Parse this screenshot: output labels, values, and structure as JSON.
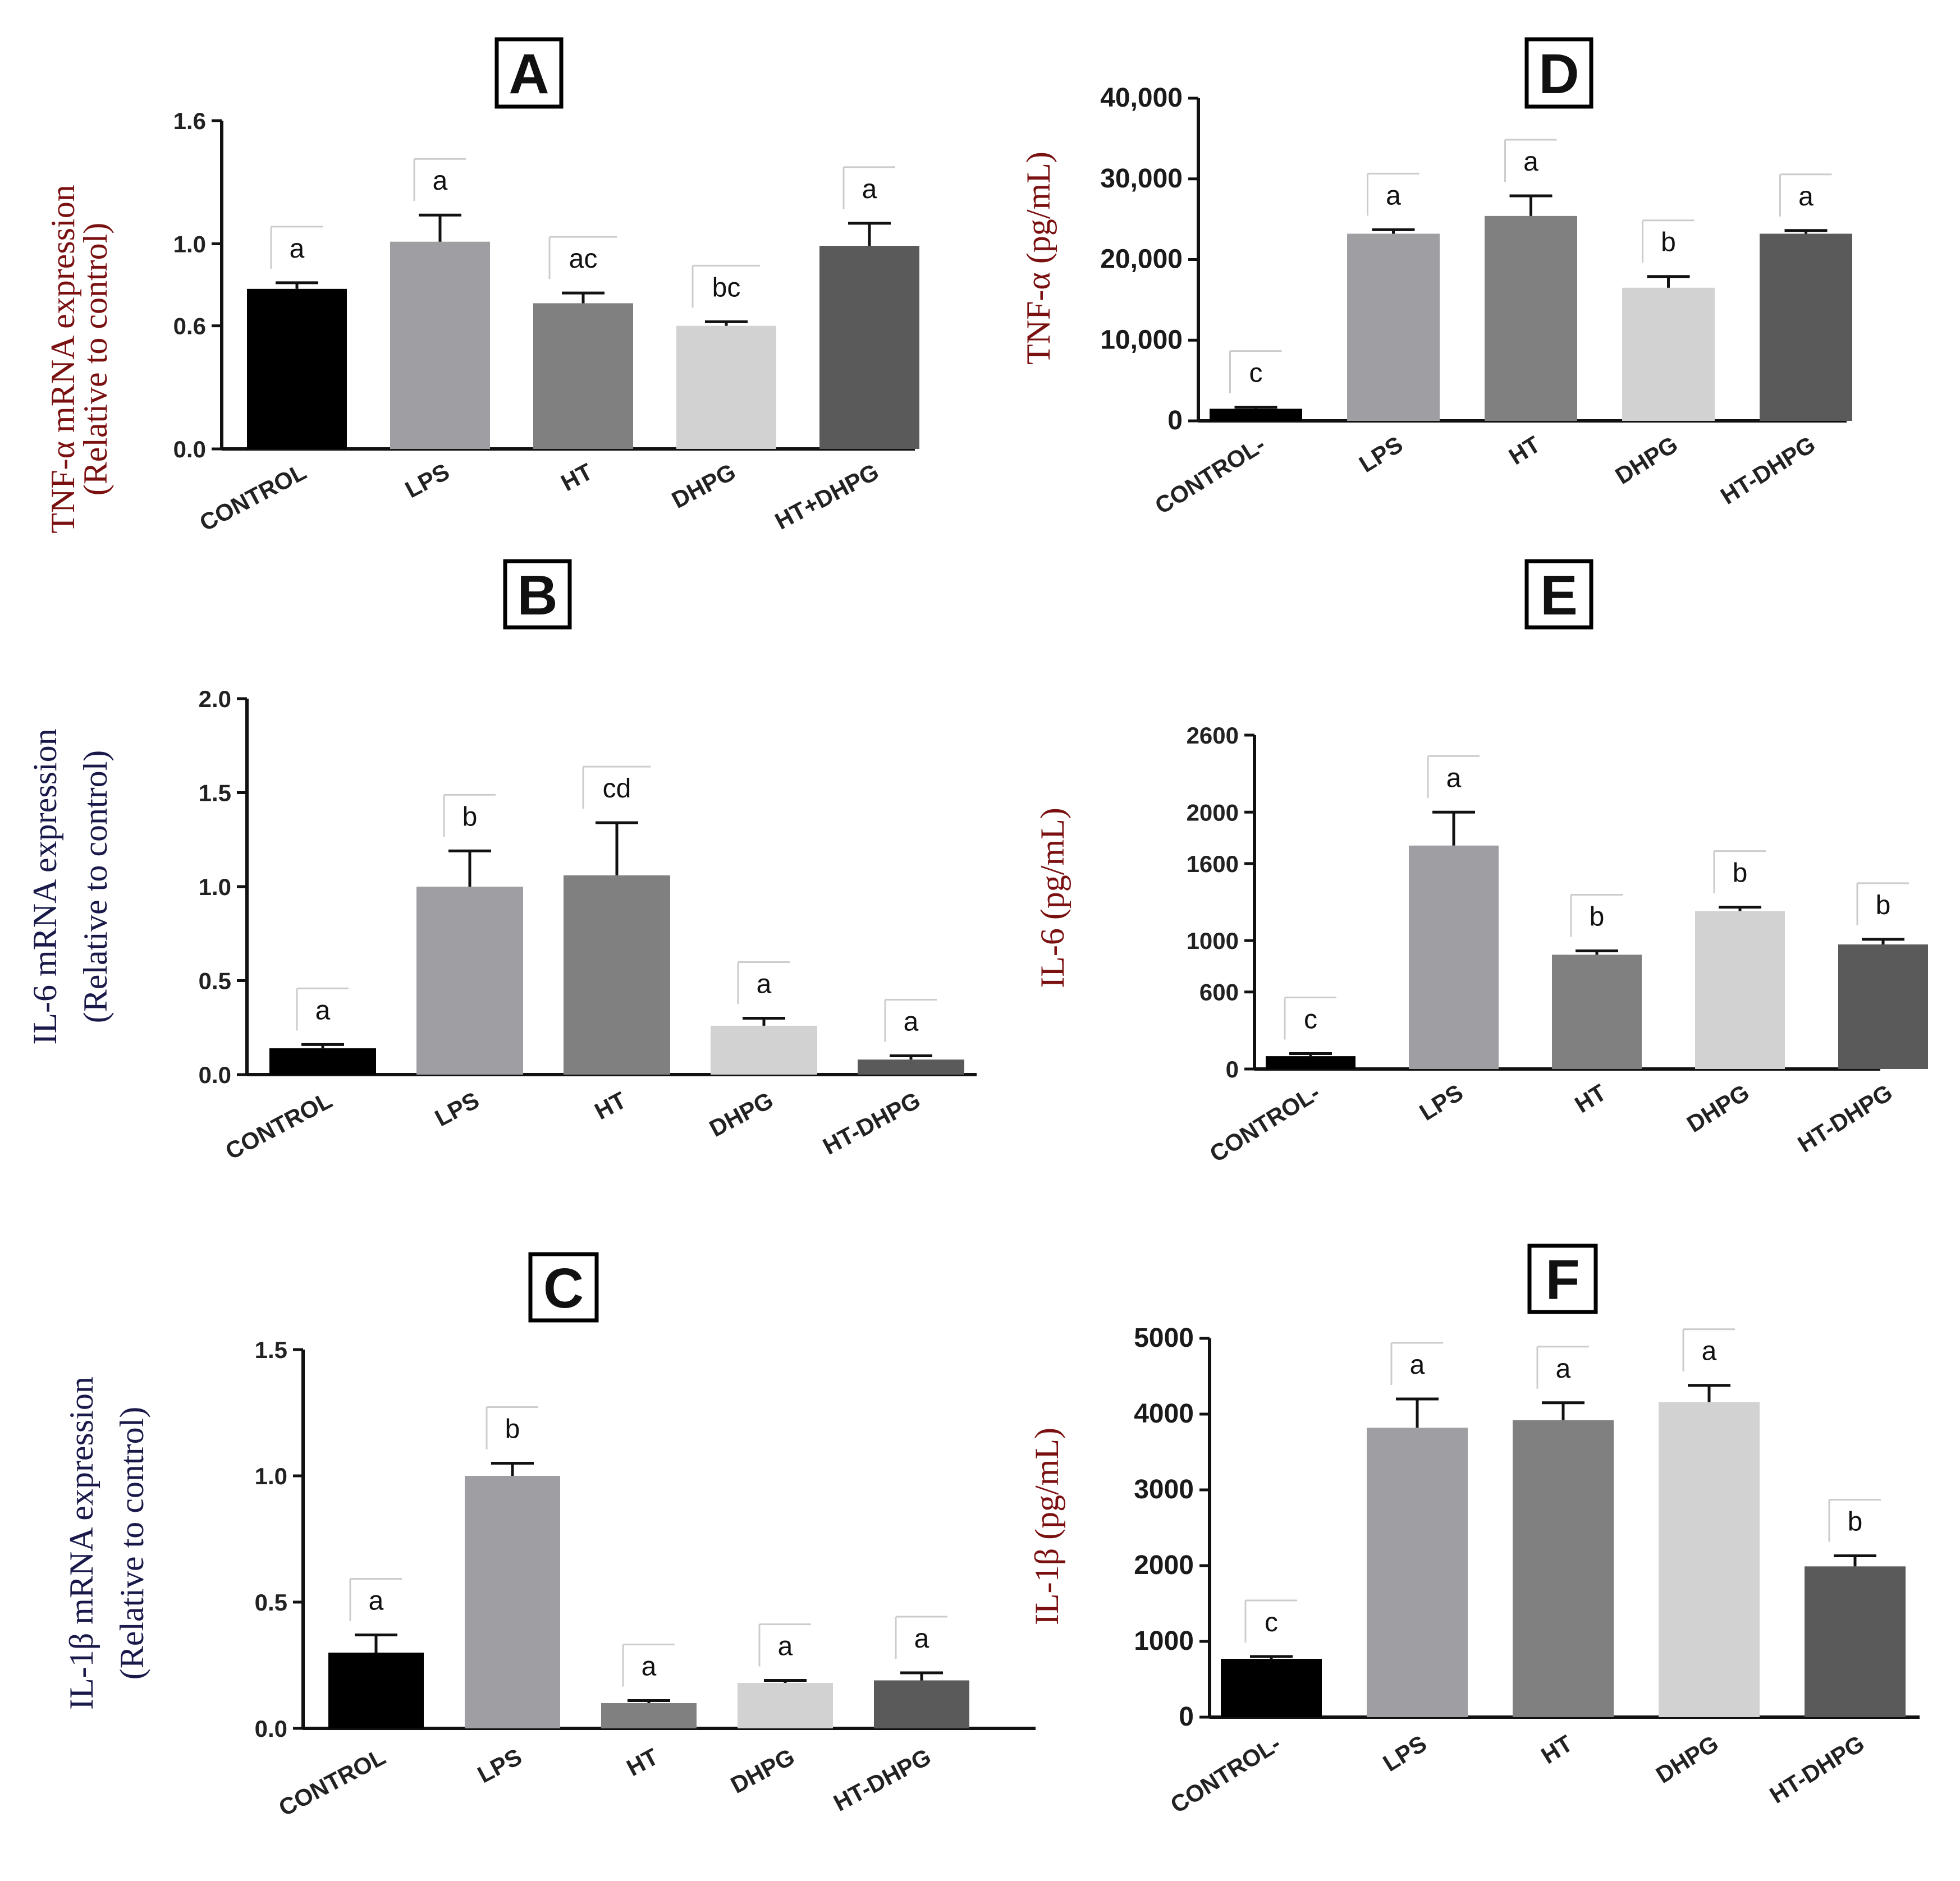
{
  "chart_data": [
    {
      "id": "A",
      "panel_label": "A",
      "type": "bar",
      "ylabel_lines": [
        "TNF-α mRNA expression",
        "(Relative to control)"
      ],
      "ylabel_color": "#7a1010",
      "categories": [
        "CONTROL",
        "LPS",
        "HT",
        "DHPG",
        "HT+DHPG"
      ],
      "values": [
        0.78,
        1.01,
        0.71,
        0.6,
        0.99
      ],
      "errors": [
        0.03,
        0.13,
        0.05,
        0.02,
        0.11
      ],
      "significance": [
        "a",
        "a",
        "ac",
        "bc",
        "a"
      ],
      "bar_colors": [
        "#000000",
        "#9e9ea3",
        "#808080",
        "#d2d2d2",
        "#5a5a5a"
      ],
      "ylim": [
        0,
        1.6
      ],
      "yticks": [
        0.0,
        0.6,
        1.0,
        1.6
      ],
      "ytick_labels": [
        "0.0",
        "0.6",
        "1.0",
        "1.6"
      ]
    },
    {
      "id": "B",
      "panel_label": "B",
      "type": "bar",
      "ylabel_lines": [
        "IL-6 mRNA expression",
        "(Relative to control)"
      ],
      "ylabel_color": "#1a1a4a",
      "categories": [
        "CONTROL",
        "LPS",
        "HT",
        "DHPG",
        "HT-DHPG"
      ],
      "values": [
        0.14,
        1.0,
        1.06,
        0.26,
        0.08
      ],
      "errors": [
        0.02,
        0.19,
        0.28,
        0.04,
        0.02
      ],
      "significance": [
        "a",
        "b",
        "cd",
        "a",
        "a"
      ],
      "bar_colors": [
        "#000000",
        "#9e9ea3",
        "#808080",
        "#d2d2d2",
        "#5a5a5a"
      ],
      "ylim": [
        0,
        2.0
      ],
      "yticks": [
        0.0,
        0.5,
        1.0,
        1.5,
        2.0
      ],
      "ytick_labels": [
        "0.0",
        "0.5",
        "1.0",
        "1.5",
        "2.0"
      ]
    },
    {
      "id": "C",
      "panel_label": "C",
      "type": "bar",
      "ylabel_lines": [
        "IL-1β mRNA expression",
        "(Relative to control)"
      ],
      "ylabel_color": "#1a1a4a",
      "categories": [
        "CONTROL",
        "LPS",
        "HT",
        "DHPG",
        "HT-DHPG"
      ],
      "values": [
        0.3,
        1.0,
        0.1,
        0.18,
        0.19
      ],
      "errors": [
        0.07,
        0.05,
        0.01,
        0.01,
        0.03
      ],
      "significance": [
        "a",
        "b",
        "a",
        "a",
        "a"
      ],
      "bar_colors": [
        "#000000",
        "#9e9ea3",
        "#808080",
        "#d2d2d2",
        "#5a5a5a"
      ],
      "ylim": [
        0,
        1.5
      ],
      "yticks": [
        0.0,
        0.5,
        1.0,
        1.5
      ],
      "ytick_labels": [
        "0.0",
        "0.5",
        "1.0",
        "1.5"
      ]
    },
    {
      "id": "D",
      "panel_label": "D",
      "type": "bar",
      "ylabel_lines": [
        "TNF-α (pg/mL)"
      ],
      "ylabel_color": "#7a1010",
      "categories": [
        "CONTROL-",
        "LPS",
        "HT",
        "DHPG",
        "HT-DHPG"
      ],
      "values": [
        1500,
        23200,
        25400,
        16500,
        23200
      ],
      "errors": [
        200,
        500,
        2500,
        1400,
        400
      ],
      "significance": [
        "c",
        "a",
        "a",
        "b",
        "a"
      ],
      "bar_colors": [
        "#000000",
        "#9e9ea3",
        "#808080",
        "#d2d2d2",
        "#5a5a5a"
      ],
      "ylim": [
        0,
        40000
      ],
      "yticks": [
        0,
        10000,
        20000,
        30000,
        40000
      ],
      "ytick_labels": [
        "0",
        "10,000",
        "20,000",
        "30,000",
        "40,000"
      ]
    },
    {
      "id": "E",
      "panel_label": "E",
      "type": "bar",
      "ylabel_lines": [
        "IL-6 (pg/mL)"
      ],
      "ylabel_color": "#7a1010",
      "categories": [
        "CONTROL-",
        "LPS",
        "HT",
        "DHPG",
        "HT-DHPG"
      ],
      "values": [
        100,
        1740,
        890,
        1230,
        970
      ],
      "errors": [
        20,
        260,
        30,
        30,
        40
      ],
      "significance": [
        "c",
        "a",
        "b",
        "b",
        "b"
      ],
      "bar_colors": [
        "#000000",
        "#9e9ea3",
        "#808080",
        "#d2d2d2",
        "#5a5a5a"
      ],
      "ylim": [
        0,
        2600
      ],
      "yticks": [
        0,
        600,
        1000,
        1600,
        2000,
        2600
      ],
      "ytick_labels": [
        "0",
        "600",
        "1000",
        "1600",
        "2000",
        "2600"
      ]
    },
    {
      "id": "F",
      "panel_label": "F",
      "type": "bar",
      "ylabel_lines": [
        "IL-1β (pg/mL)"
      ],
      "ylabel_color": "#7a1010",
      "categories": [
        "CONTROL-",
        "LPS",
        "HT",
        "DHPG",
        "HT-DHPG"
      ],
      "values": [
        770,
        3820,
        3920,
        4160,
        1990
      ],
      "errors": [
        30,
        380,
        230,
        220,
        140
      ],
      "significance": [
        "c",
        "a",
        "a",
        "a",
        "b"
      ],
      "bar_colors": [
        "#000000",
        "#9e9ea3",
        "#808080",
        "#d2d2d2",
        "#5a5a5a"
      ],
      "ylim": [
        0,
        5000
      ],
      "yticks": [
        0,
        1000,
        2000,
        3000,
        4000,
        5000
      ],
      "ytick_labels": [
        "0",
        "1000",
        "2000",
        "3000",
        "4000",
        "5000"
      ]
    }
  ]
}
